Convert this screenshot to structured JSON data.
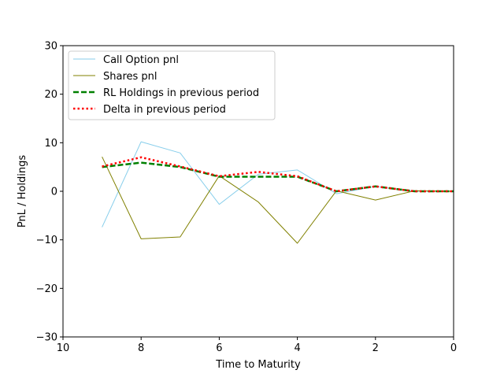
{
  "chart_data": {
    "type": "line",
    "title": "",
    "xlabel": "Time to Maturity",
    "ylabel": "PnL / Holdings",
    "xlim": [
      10,
      0
    ],
    "ylim": [
      -30,
      30
    ],
    "x_inverted": true,
    "xticks": [
      10,
      8,
      6,
      4,
      2,
      0
    ],
    "yticks": [
      -30,
      -20,
      -10,
      0,
      10,
      20,
      30
    ],
    "xtick_labels": [
      "10",
      "8",
      "6",
      "4",
      "2",
      "0"
    ],
    "ytick_labels": [
      "−30",
      "−20",
      "−10",
      "0",
      "10",
      "20",
      "30"
    ],
    "grid": false,
    "legend_position": "top-left",
    "x": [
      9,
      8,
      7,
      6,
      5,
      4,
      3,
      2,
      1,
      0
    ],
    "series": [
      {
        "name": "Call Option pnl",
        "color": "#87ceeb",
        "style": "solid",
        "width": 1,
        "values": [
          -7.4,
          10.2,
          7.9,
          -2.7,
          3.5,
          4.4,
          -0.5,
          1.0,
          0.0,
          0.0
        ]
      },
      {
        "name": "Shares pnl",
        "color": "#808000",
        "style": "solid",
        "width": 1,
        "values": [
          7.1,
          -9.8,
          -9.4,
          3.2,
          -2.2,
          -10.7,
          0.1,
          -1.8,
          0.1,
          0.0
        ]
      },
      {
        "name": "RL Holdings in previous period",
        "color": "#008000",
        "style": "dashed",
        "width": 2.5,
        "values": [
          5.0,
          5.9,
          5.0,
          3.0,
          3.0,
          3.0,
          0.0,
          1.0,
          0.0,
          0.0
        ]
      },
      {
        "name": "Delta in previous period",
        "color": "#ff0000",
        "style": "dotted",
        "width": 2.5,
        "values": [
          5.1,
          7.0,
          5.1,
          3.1,
          4.0,
          3.1,
          0.0,
          1.0,
          0.0,
          0.0
        ]
      }
    ]
  }
}
